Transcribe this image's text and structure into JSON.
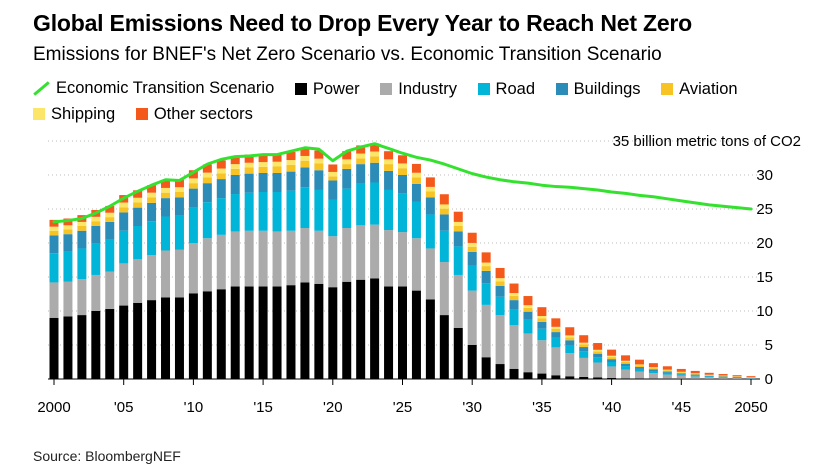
{
  "title": "Global Emissions Need to Drop Every Year to Reach Net Zero",
  "subtitle": "Emissions for BNEF's Net Zero Scenario vs. Economic Transition Scenario",
  "source": "Source: BloombergNEF",
  "legend": [
    {
      "label": "Economic Transition Scenario",
      "color": "#35e12f",
      "kind": "line"
    },
    {
      "label": "Power",
      "color": "#000000",
      "kind": "box"
    },
    {
      "label": "Industry",
      "color": "#ababab",
      "kind": "box"
    },
    {
      "label": "Road",
      "color": "#00b5d8",
      "kind": "box"
    },
    {
      "label": "Buildings",
      "color": "#2b8cb8",
      "kind": "box"
    },
    {
      "label": "Aviation",
      "color": "#f7c325",
      "kind": "box"
    },
    {
      "label": "Shipping",
      "color": "#fbe66a",
      "kind": "box"
    },
    {
      "label": "Other sectors",
      "color": "#f4591b",
      "kind": "box"
    }
  ],
  "chart_data": {
    "type": "bar",
    "stacked": true,
    "unit_label": "35 billion metric tons of CO2",
    "ylim": [
      0,
      35
    ],
    "y_ticks": [
      0,
      5,
      10,
      15,
      20,
      25,
      30
    ],
    "x_tick_labels": [
      "2000",
      "'05",
      "'10",
      "'15",
      "'20",
      "'25",
      "'30",
      "'35",
      "'40",
      "'45",
      "2050"
    ],
    "x": [
      2000,
      2001,
      2002,
      2003,
      2004,
      2005,
      2006,
      2007,
      2008,
      2009,
      2010,
      2011,
      2012,
      2013,
      2014,
      2015,
      2016,
      2017,
      2018,
      2019,
      2020,
      2021,
      2022,
      2023,
      2024,
      2025,
      2026,
      2027,
      2028,
      2029,
      2030,
      2031,
      2032,
      2033,
      2034,
      2035,
      2036,
      2037,
      2038,
      2039,
      2040,
      2041,
      2042,
      2043,
      2044,
      2045,
      2046,
      2047,
      2048,
      2049,
      2050
    ],
    "series": [
      {
        "name": "Power",
        "color": "#000000",
        "values": [
          9.0,
          9.2,
          9.4,
          10.0,
          10.3,
          10.8,
          11.2,
          11.6,
          12.0,
          12.0,
          12.6,
          12.9,
          13.2,
          13.6,
          13.6,
          13.6,
          13.6,
          13.8,
          14.2,
          14.0,
          13.5,
          14.3,
          14.6,
          14.8,
          13.6,
          13.6,
          13.0,
          11.7,
          9.4,
          7.5,
          5.0,
          3.2,
          2.2,
          1.5,
          1.0,
          0.8,
          0.55,
          0.4,
          0.3,
          0.22,
          0.15,
          0.1,
          0.08,
          0.06,
          0.05,
          0.04,
          0.03,
          0.02,
          0.02,
          0.01,
          0.01
        ]
      },
      {
        "name": "Industry",
        "color": "#ababab",
        "values": [
          5.2,
          5.1,
          5.3,
          5.3,
          5.5,
          6.2,
          6.4,
          6.6,
          6.9,
          7.0,
          7.4,
          7.8,
          8.0,
          8.1,
          8.2,
          8.2,
          8.1,
          8.0,
          8.0,
          7.8,
          7.5,
          7.9,
          8.0,
          7.9,
          8.3,
          8.0,
          7.7,
          7.5,
          7.8,
          7.8,
          8.0,
          7.7,
          7.2,
          6.4,
          5.7,
          4.9,
          4.1,
          3.4,
          2.8,
          2.2,
          1.7,
          1.3,
          1.0,
          0.8,
          0.6,
          0.45,
          0.35,
          0.25,
          0.2,
          0.15,
          0.1
        ]
      },
      {
        "name": "Road",
        "color": "#00b5d8",
        "values": [
          4.3,
          4.4,
          4.5,
          4.6,
          4.7,
          4.8,
          4.9,
          5.0,
          5.0,
          5.0,
          5.2,
          5.3,
          5.4,
          5.5,
          5.6,
          5.7,
          5.8,
          5.9,
          6.0,
          6.0,
          5.4,
          5.8,
          6.1,
          6.2,
          5.9,
          5.7,
          5.4,
          5.0,
          4.6,
          4.2,
          3.7,
          3.2,
          2.7,
          2.3,
          2.0,
          1.7,
          1.4,
          1.2,
          1.0,
          0.8,
          0.65,
          0.5,
          0.4,
          0.32,
          0.26,
          0.2,
          0.16,
          0.12,
          0.1,
          0.08,
          0.06
        ]
      },
      {
        "name": "Buildings",
        "color": "#2b8cb8",
        "values": [
          2.6,
          2.6,
          2.6,
          2.6,
          2.6,
          2.7,
          2.7,
          2.7,
          2.7,
          2.7,
          2.8,
          2.8,
          2.8,
          2.8,
          2.8,
          2.8,
          2.8,
          2.8,
          2.9,
          2.9,
          2.8,
          2.9,
          2.9,
          2.9,
          2.8,
          2.7,
          2.6,
          2.5,
          2.4,
          2.2,
          2.0,
          1.8,
          1.6,
          1.4,
          1.2,
          1.0,
          0.85,
          0.7,
          0.6,
          0.5,
          0.42,
          0.35,
          0.28,
          0.22,
          0.18,
          0.14,
          0.11,
          0.08,
          0.06,
          0.05,
          0.04
        ]
      },
      {
        "name": "Aviation",
        "color": "#f7c325",
        "values": [
          0.7,
          0.7,
          0.7,
          0.7,
          0.7,
          0.75,
          0.75,
          0.8,
          0.8,
          0.8,
          0.8,
          0.85,
          0.85,
          0.9,
          0.9,
          0.9,
          0.95,
          1.0,
          1.0,
          1.0,
          0.6,
          0.7,
          0.85,
          0.95,
          1.0,
          1.0,
          0.95,
          0.9,
          0.85,
          0.8,
          0.75,
          0.7,
          0.65,
          0.6,
          0.55,
          0.5,
          0.45,
          0.42,
          0.38,
          0.34,
          0.3,
          0.26,
          0.23,
          0.2,
          0.17,
          0.14,
          0.12,
          0.1,
          0.08,
          0.06,
          0.05
        ]
      },
      {
        "name": "Shipping",
        "color": "#fbe66a",
        "values": [
          0.6,
          0.6,
          0.6,
          0.65,
          0.65,
          0.7,
          0.7,
          0.7,
          0.7,
          0.7,
          0.7,
          0.7,
          0.7,
          0.7,
          0.7,
          0.7,
          0.7,
          0.7,
          0.7,
          0.7,
          0.65,
          0.7,
          0.7,
          0.7,
          0.7,
          0.7,
          0.68,
          0.65,
          0.62,
          0.6,
          0.56,
          0.52,
          0.48,
          0.44,
          0.4,
          0.36,
          0.32,
          0.29,
          0.26,
          0.23,
          0.2,
          0.17,
          0.15,
          0.13,
          0.11,
          0.09,
          0.07,
          0.06,
          0.05,
          0.04,
          0.03
        ]
      },
      {
        "name": "Other sectors",
        "color": "#f4591b",
        "values": [
          1.0,
          1.0,
          1.0,
          1.0,
          1.0,
          1.1,
          1.1,
          1.1,
          1.1,
          1.1,
          1.2,
          1.2,
          1.2,
          1.2,
          1.2,
          1.2,
          1.2,
          1.2,
          1.2,
          1.2,
          1.1,
          1.2,
          1.2,
          1.2,
          1.2,
          1.2,
          1.3,
          1.4,
          1.5,
          1.5,
          1.5,
          1.5,
          1.5,
          1.4,
          1.35,
          1.3,
          1.25,
          1.2,
          1.1,
          1.0,
          0.9,
          0.8,
          0.7,
          0.6,
          0.5,
          0.42,
          0.35,
          0.28,
          0.22,
          0.17,
          0.13
        ]
      }
    ],
    "line": {
      "name": "Economic Transition Scenario",
      "color": "#35e12f",
      "values": [
        23.1,
        23.3,
        23.6,
        24.4,
        25.4,
        26.6,
        27.6,
        28.5,
        29.3,
        29.2,
        30.4,
        31.6,
        32.3,
        32.7,
        32.8,
        33.0,
        33.0,
        33.5,
        34.0,
        33.8,
        32.1,
        33.5,
        34.1,
        34.6,
        33.9,
        33.2,
        32.6,
        32.2,
        31.6,
        30.9,
        30.2,
        29.7,
        29.3,
        29.0,
        28.8,
        28.5,
        28.3,
        28.2,
        28.0,
        27.8,
        27.5,
        27.3,
        27.0,
        26.8,
        26.5,
        26.2,
        25.9,
        25.6,
        25.4,
        25.2,
        25.0
      ]
    }
  }
}
